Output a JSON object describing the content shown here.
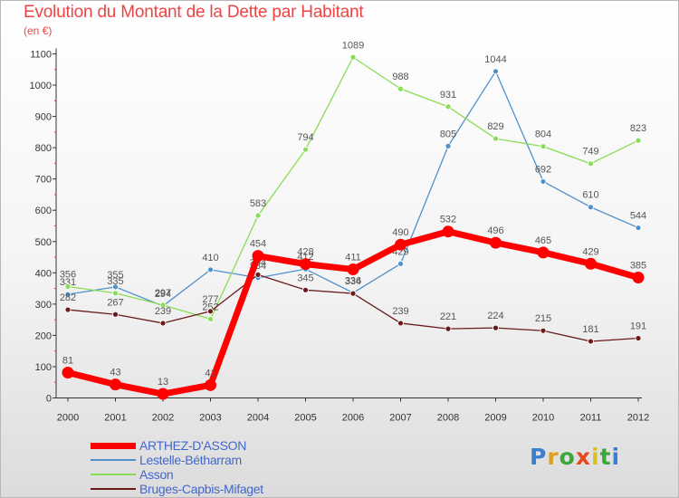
{
  "title": "Evolution du Montant de la Dette par Habitant",
  "unit": "(en €)",
  "logo": "Proxiti",
  "chart_data": {
    "type": "line",
    "x": [
      "2000",
      "2001",
      "2002",
      "2003",
      "2004",
      "2005",
      "2006",
      "2007",
      "2008",
      "2009",
      "2010",
      "2011",
      "2012"
    ],
    "yticks": [
      0,
      100,
      200,
      300,
      400,
      500,
      600,
      700,
      800,
      900,
      1000,
      1100
    ],
    "ylim": [
      0,
      1100
    ],
    "grid": false,
    "legend_position": "bottom-left",
    "series": [
      {
        "name": "ARTHEZ-D'ASSON",
        "color": "#ff0000",
        "width": 7,
        "values": [
          81,
          43,
          13,
          41,
          454,
          428,
          411,
          490,
          532,
          496,
          465,
          429,
          385
        ],
        "labels": [
          "81",
          "43",
          "13",
          "41",
          "454",
          "428",
          "411",
          "490",
          "532",
          "496",
          "465",
          "429",
          "385"
        ]
      },
      {
        "name": "Lestelle-Bétharram",
        "color": "#4f91cc",
        "width": 1.3,
        "values": [
          331,
          355,
          294,
          410,
          384,
          412,
          336,
          429,
          805,
          1044,
          692,
          610,
          544
        ],
        "labels": [
          "331",
          "355",
          "294",
          "410",
          "384",
          "412",
          "336",
          "429",
          "805",
          "1044",
          "692",
          "610",
          "544"
        ]
      },
      {
        "name": "Asson",
        "color": "#88dd55",
        "width": 1.3,
        "values": [
          356,
          335,
          297,
          252,
          583,
          794,
          1089,
          988,
          931,
          829,
          804,
          749,
          823
        ],
        "labels": [
          "356",
          "335",
          "297",
          "252",
          "583",
          "794",
          "1089",
          "988",
          "931",
          "829",
          "804",
          "749",
          "823"
        ]
      },
      {
        "name": "Bruges-Capbis-Mifaget",
        "color": "#6b1a1a",
        "width": 1.3,
        "values": [
          282,
          267,
          239,
          277,
          394,
          345,
          334,
          239,
          221,
          224,
          215,
          181,
          191
        ],
        "labels": [
          "282",
          "267",
          "239",
          "277",
          "394",
          "345",
          "334",
          "239",
          "221",
          "224",
          "215",
          "181",
          "191"
        ]
      }
    ]
  }
}
